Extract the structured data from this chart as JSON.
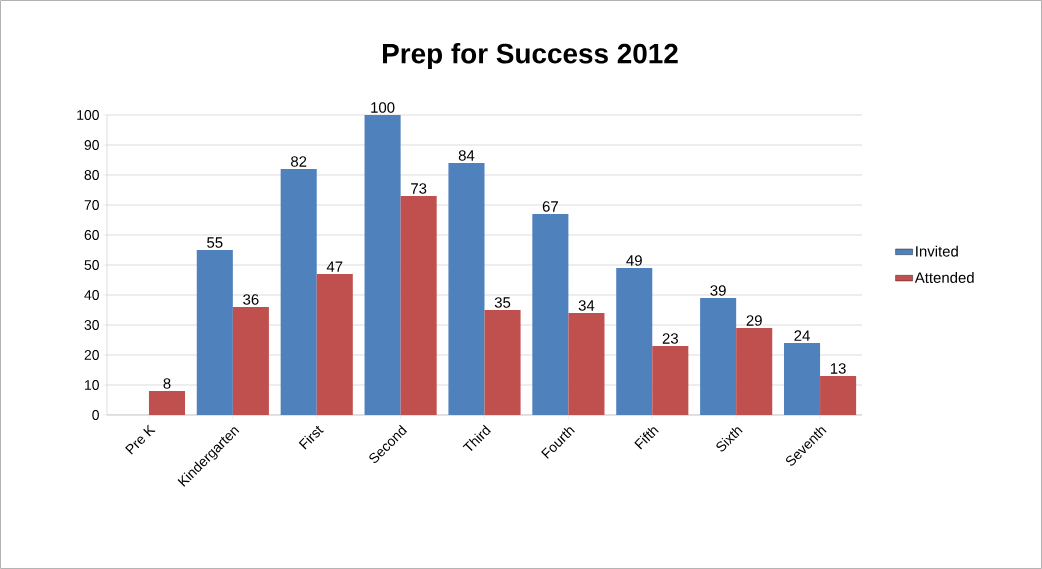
{
  "chart_data": {
    "type": "bar",
    "title": "Prep for Success 2012",
    "categories": [
      "Pre K",
      "Kindergarten",
      "First",
      "Second",
      "Third",
      "Fourth",
      "Fifth",
      "Sixth",
      "Seventh"
    ],
    "series": [
      {
        "name": "Invited",
        "color": "#4f81bd",
        "values": [
          null,
          55,
          82,
          100,
          84,
          67,
          49,
          39,
          24
        ]
      },
      {
        "name": "Attended",
        "color": "#c0504d",
        "values": [
          8,
          36,
          47,
          73,
          35,
          34,
          23,
          29,
          13
        ]
      }
    ],
    "ylim": [
      0,
      100
    ],
    "yticks": [
      0,
      10,
      20,
      30,
      40,
      50,
      60,
      70,
      80,
      90,
      100
    ],
    "grid": "y",
    "legend": "right",
    "data_labels": true
  }
}
